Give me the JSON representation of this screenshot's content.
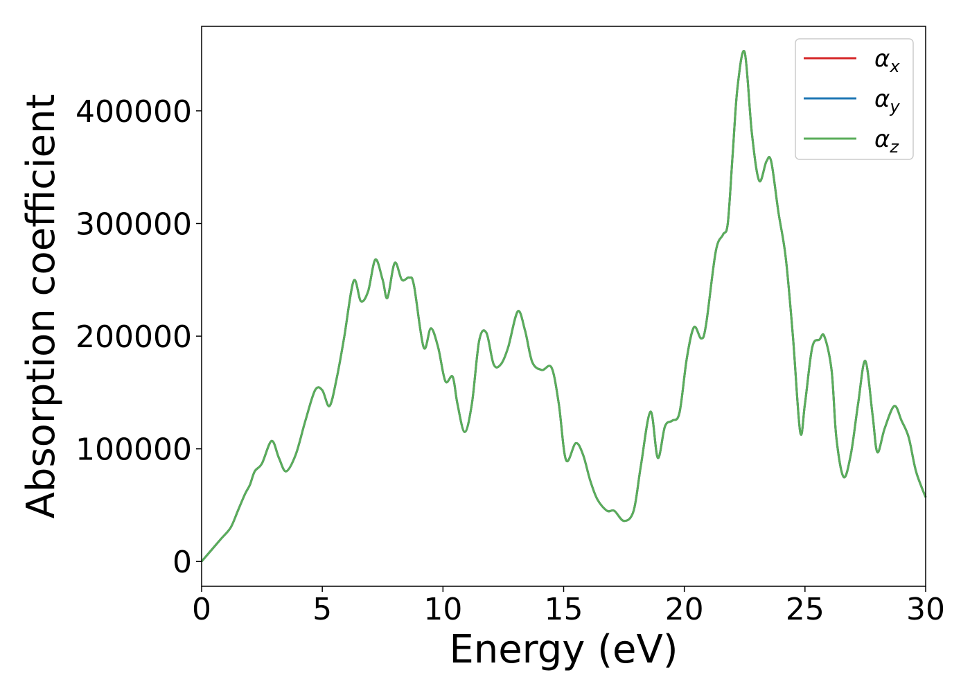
{
  "chart_data": {
    "type": "line",
    "title": "",
    "xlabel": "Energy (eV)",
    "ylabel": "Absorption coefficient",
    "xlim": [
      0,
      30
    ],
    "ylim": [
      -22000,
      475000
    ],
    "grid": false,
    "legend_position": "top-right",
    "x_ticks": [
      0,
      5,
      10,
      15,
      20,
      25,
      30
    ],
    "x_tick_labels": [
      "0",
      "5",
      "10",
      "15",
      "20",
      "25",
      "30"
    ],
    "y_ticks": [
      0,
      100000,
      200000,
      300000,
      400000
    ],
    "y_tick_labels": [
      "0",
      "100000",
      "200000",
      "300000",
      "400000"
    ],
    "x": [
      0,
      0.4,
      0.8,
      1.2,
      1.5,
      1.8,
      2.0,
      2.2,
      2.5,
      2.9,
      3.2,
      3.5,
      3.9,
      4.3,
      4.7,
      5.0,
      5.3,
      5.6,
      5.9,
      6.3,
      6.6,
      6.9,
      7.2,
      7.5,
      7.7,
      8.0,
      8.3,
      8.6,
      8.8,
      9.2,
      9.5,
      9.8,
      10.1,
      10.4,
      10.6,
      10.9,
      11.2,
      11.5,
      11.8,
      12.1,
      12.4,
      12.7,
      13.1,
      13.4,
      13.7,
      14.1,
      14.5,
      14.8,
      15.1,
      15.5,
      15.8,
      16.1,
      16.4,
      16.8,
      17.1,
      17.5,
      17.9,
      18.2,
      18.6,
      18.9,
      19.2,
      19.5,
      19.8,
      20.1,
      20.4,
      20.7,
      20.9,
      21.3,
      21.6,
      21.8,
      22.0,
      22.2,
      22.5,
      22.8,
      23.1,
      23.4,
      23.6,
      23.9,
      24.2,
      24.5,
      24.8,
      25.0,
      25.3,
      25.6,
      25.8,
      26.1,
      26.3,
      26.6,
      26.9,
      27.2,
      27.5,
      27.8,
      28.0,
      28.3,
      28.7,
      29.0,
      29.3,
      29.6,
      30.0
    ],
    "series": [
      {
        "name": "x",
        "color": "#d62728",
        "values": [
          0,
          10000,
          20000,
          30000,
          45000,
          60000,
          68000,
          80000,
          87000,
          107000,
          92000,
          80000,
          95000,
          125000,
          152000,
          152000,
          138000,
          163000,
          198000,
          249000,
          231000,
          240000,
          268000,
          250000,
          234000,
          265000,
          250000,
          252000,
          245000,
          190000,
          207000,
          190000,
          160000,
          164000,
          140000,
          115000,
          140000,
          196000,
          203000,
          175000,
          175000,
          190000,
          222000,
          205000,
          177000,
          170000,
          172000,
          140000,
          90000,
          105000,
          95000,
          72000,
          55000,
          45000,
          45000,
          36000,
          45000,
          85000,
          133000,
          92000,
          120000,
          125000,
          132000,
          180000,
          208000,
          198000,
          210000,
          275000,
          290000,
          300000,
          360000,
          420000,
          452000,
          380000,
          338000,
          355000,
          355000,
          310000,
          270000,
          200000,
          115000,
          140000,
          190000,
          197000,
          200000,
          170000,
          110000,
          75000,
          95000,
          140000,
          178000,
          130000,
          97000,
          118000,
          138000,
          125000,
          110000,
          80000,
          57000
        ]
      },
      {
        "name": "y",
        "color": "#1f77b4",
        "values": [
          0,
          10000,
          20000,
          30000,
          45000,
          60000,
          68000,
          80000,
          87000,
          107000,
          92000,
          80000,
          95000,
          125000,
          152000,
          152000,
          138000,
          163000,
          198000,
          249000,
          231000,
          240000,
          268000,
          250000,
          234000,
          265000,
          250000,
          252000,
          245000,
          190000,
          207000,
          190000,
          160000,
          164000,
          140000,
          115000,
          140000,
          196000,
          203000,
          175000,
          175000,
          190000,
          222000,
          205000,
          177000,
          170000,
          172000,
          140000,
          90000,
          105000,
          95000,
          72000,
          55000,
          45000,
          45000,
          36000,
          45000,
          85000,
          133000,
          92000,
          120000,
          125000,
          132000,
          180000,
          208000,
          198000,
          210000,
          275000,
          290000,
          300000,
          360000,
          420000,
          452000,
          380000,
          338000,
          355000,
          355000,
          310000,
          270000,
          200000,
          115000,
          140000,
          190000,
          197000,
          200000,
          170000,
          110000,
          75000,
          95000,
          140000,
          178000,
          130000,
          97000,
          118000,
          138000,
          125000,
          110000,
          80000,
          57000
        ]
      },
      {
        "name": "z",
        "color": "#5aad5a",
        "values": [
          0,
          10000,
          20000,
          30000,
          45000,
          60000,
          68000,
          80000,
          87000,
          107000,
          92000,
          80000,
          95000,
          125000,
          152000,
          152000,
          138000,
          163000,
          198000,
          249000,
          231000,
          240000,
          268000,
          250000,
          234000,
          265000,
          250000,
          252000,
          245000,
          190000,
          207000,
          190000,
          160000,
          164000,
          140000,
          115000,
          140000,
          196000,
          203000,
          175000,
          175000,
          190000,
          222000,
          205000,
          177000,
          170000,
          172000,
          140000,
          90000,
          105000,
          95000,
          72000,
          55000,
          45000,
          45000,
          36000,
          45000,
          85000,
          133000,
          92000,
          120000,
          125000,
          132000,
          180000,
          208000,
          198000,
          210000,
          275000,
          290000,
          300000,
          360000,
          420000,
          452000,
          380000,
          338000,
          355000,
          355000,
          310000,
          270000,
          200000,
          115000,
          140000,
          190000,
          197000,
          200000,
          170000,
          110000,
          75000,
          95000,
          140000,
          178000,
          130000,
          97000,
          118000,
          138000,
          125000,
          110000,
          80000,
          57000
        ]
      }
    ],
    "legend": {
      "symbol": "α",
      "entries": [
        {
          "sub": "x",
          "color": "#d62728"
        },
        {
          "sub": "y",
          "color": "#1f77b4"
        },
        {
          "sub": "z",
          "color": "#5aad5a"
        }
      ]
    }
  }
}
